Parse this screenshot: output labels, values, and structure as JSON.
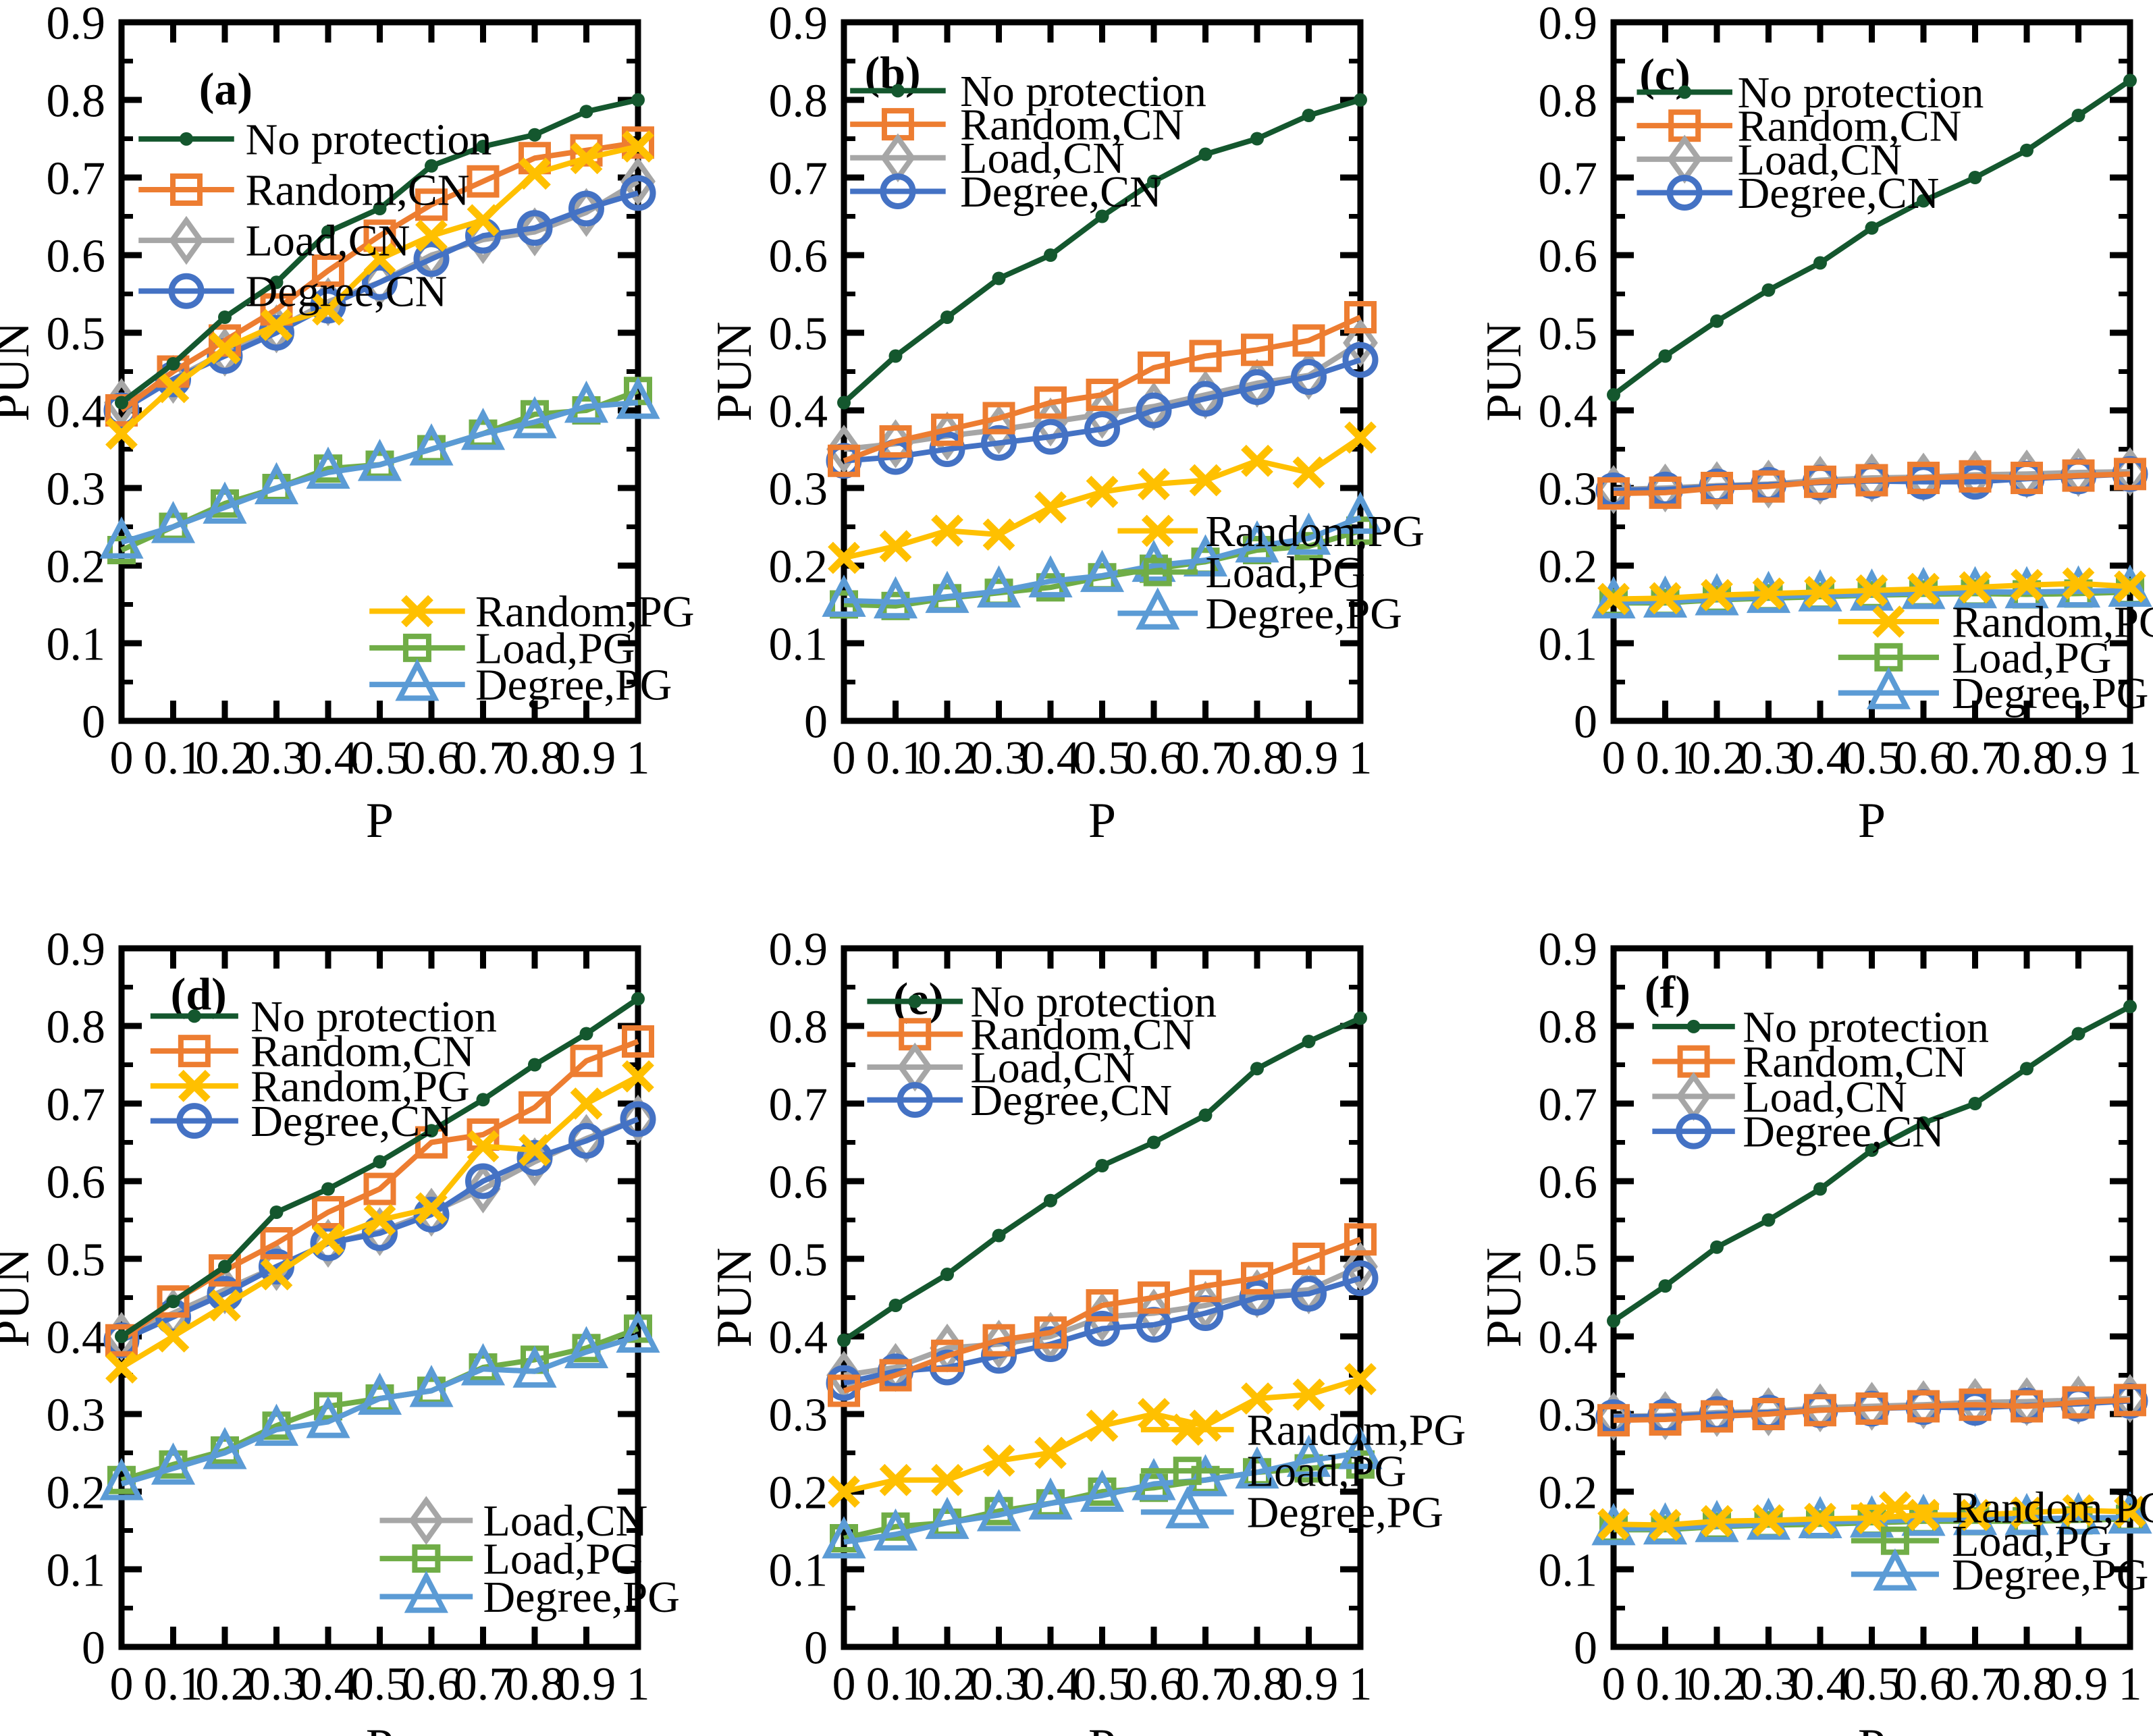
{
  "figure": {
    "xlabel": "P",
    "ylabel": "PUN",
    "x_ticklabels": [
      "0",
      "0.1",
      "0.2",
      "0.3",
      "0.4",
      "0.5",
      "0.6",
      "0.7",
      "0.8",
      "0.9",
      "1"
    ],
    "y_ticklabels": [
      "0",
      "0.1",
      "0.2",
      "0.3",
      "0.4",
      "0.5",
      "0.6",
      "0.7",
      "0.8",
      "0.9"
    ],
    "axis_color": "#000000",
    "background_color": "#ffffff"
  },
  "series_defs": {
    "No protection": {
      "color": "#14572E",
      "marker": "dot",
      "size": 10
    },
    "Random,CN": {
      "color": "#ED7D31",
      "marker": "square",
      "size": 40
    },
    "Load,CN": {
      "color": "#A6A6A6",
      "marker": "diamond",
      "size": 42
    },
    "Degree,CN": {
      "color": "#4472C4",
      "marker": "circle",
      "size": 44
    },
    "Random,PG": {
      "color": "#FFC000",
      "marker": "x",
      "size": 40
    },
    "Load,PG": {
      "color": "#70AD47",
      "marker": "square",
      "size": 34
    },
    "Degree,PG": {
      "color": "#5B9BD5",
      "marker": "triangle",
      "size": 48
    }
  },
  "chart_data": [
    {
      "id": "a",
      "letter": "(a)",
      "type": "line",
      "xlabel": "P",
      "ylabel": "PUN",
      "xlim": [
        0,
        1
      ],
      "ylim": [
        0,
        0.9
      ],
      "x": [
        0,
        0.1,
        0.2,
        0.3,
        0.4,
        0.5,
        0.6,
        0.7,
        0.8,
        0.9,
        1
      ],
      "legend_top": [
        "No protection",
        "Random,CN",
        "Load,CN",
        "Degree,CN"
      ],
      "legend_bottom": [
        "Random,PG",
        "Load,PG",
        "Degree,PG"
      ],
      "series": [
        {
          "name": "No protection",
          "values": [
            0.41,
            0.46,
            0.52,
            0.565,
            0.63,
            0.66,
            0.715,
            0.74,
            0.755,
            0.785,
            0.8
          ]
        },
        {
          "name": "Random,CN",
          "values": [
            0.4,
            0.45,
            0.49,
            0.53,
            0.58,
            0.625,
            0.665,
            0.695,
            0.725,
            0.735,
            0.745
          ]
        },
        {
          "name": "Load,CN",
          "values": [
            0.41,
            0.44,
            0.475,
            0.505,
            0.54,
            0.565,
            0.6,
            0.62,
            0.63,
            0.655,
            0.695
          ]
        },
        {
          "name": "Degree,CN",
          "values": [
            0.4,
            0.44,
            0.47,
            0.5,
            0.535,
            0.565,
            0.595,
            0.625,
            0.635,
            0.66,
            0.68
          ]
        },
        {
          "name": "Random,PG",
          "values": [
            0.37,
            0.43,
            0.48,
            0.51,
            0.53,
            0.595,
            0.625,
            0.645,
            0.705,
            0.725,
            0.74
          ]
        },
        {
          "name": "Load,PG",
          "values": [
            0.22,
            0.25,
            0.28,
            0.3,
            0.325,
            0.33,
            0.35,
            0.37,
            0.395,
            0.4,
            0.425
          ]
        },
        {
          "name": "Degree,PG",
          "values": [
            0.23,
            0.25,
            0.275,
            0.3,
            0.32,
            0.33,
            0.35,
            0.37,
            0.385,
            0.405,
            0.41
          ]
        }
      ]
    },
    {
      "id": "b",
      "letter": "(b)",
      "type": "line",
      "xlabel": "P",
      "ylabel": "PUN",
      "xlim": [
        0,
        1
      ],
      "ylim": [
        0,
        0.9
      ],
      "x": [
        0,
        0.1,
        0.2,
        0.3,
        0.4,
        0.5,
        0.6,
        0.7,
        0.8,
        0.9,
        1
      ],
      "legend_top": [
        "No protection",
        "Random,CN",
        "Load,CN",
        "Degree,CN"
      ],
      "legend_bottom": [
        "Random,PG",
        "Load,PG",
        "Degree,PG"
      ],
      "series": [
        {
          "name": "No protection",
          "values": [
            0.41,
            0.47,
            0.52,
            0.57,
            0.6,
            0.65,
            0.695,
            0.73,
            0.75,
            0.78,
            0.8
          ]
        },
        {
          "name": "Random,CN",
          "values": [
            0.335,
            0.36,
            0.375,
            0.39,
            0.41,
            0.42,
            0.455,
            0.47,
            0.478,
            0.49,
            0.52
          ]
        },
        {
          "name": "Load,CN",
          "values": [
            0.35,
            0.357,
            0.367,
            0.375,
            0.385,
            0.395,
            0.405,
            0.42,
            0.435,
            0.445,
            0.487
          ]
        },
        {
          "name": "Degree,CN",
          "values": [
            0.335,
            0.34,
            0.35,
            0.358,
            0.366,
            0.376,
            0.4,
            0.415,
            0.43,
            0.443,
            0.465
          ]
        },
        {
          "name": "Random,PG",
          "values": [
            0.21,
            0.225,
            0.245,
            0.24,
            0.275,
            0.295,
            0.305,
            0.31,
            0.335,
            0.32,
            0.365
          ]
        },
        {
          "name": "Load,PG",
          "values": [
            0.15,
            0.148,
            0.158,
            0.165,
            0.172,
            0.185,
            0.196,
            0.205,
            0.22,
            0.225,
            0.245
          ]
        },
        {
          "name": "Degree,PG",
          "values": [
            0.155,
            0.153,
            0.16,
            0.167,
            0.18,
            0.187,
            0.2,
            0.207,
            0.225,
            0.235,
            0.262
          ]
        }
      ]
    },
    {
      "id": "c",
      "letter": "(c)",
      "type": "line",
      "xlabel": "P",
      "ylabel": "PUN",
      "xlim": [
        0,
        1
      ],
      "ylim": [
        0,
        0.9
      ],
      "x": [
        0,
        0.1,
        0.2,
        0.3,
        0.4,
        0.5,
        0.6,
        0.7,
        0.8,
        0.9,
        1
      ],
      "legend_top": [
        "No protection",
        "Random,CN",
        "Load,CN",
        "Degree,CN"
      ],
      "legend_bottom": [
        "Random,PG",
        "Load,PG",
        "Degree,PG"
      ],
      "series": [
        {
          "name": "No protection",
          "values": [
            0.42,
            0.47,
            0.515,
            0.555,
            0.59,
            0.635,
            0.67,
            0.7,
            0.735,
            0.78,
            0.825
          ]
        },
        {
          "name": "Random,CN",
          "values": [
            0.293,
            0.294,
            0.3,
            0.302,
            0.308,
            0.31,
            0.313,
            0.315,
            0.313,
            0.316,
            0.318
          ]
        },
        {
          "name": "Load,CN",
          "values": [
            0.298,
            0.3,
            0.303,
            0.305,
            0.31,
            0.313,
            0.314,
            0.317,
            0.318,
            0.32,
            0.321
          ]
        },
        {
          "name": "Degree,CN",
          "values": [
            0.297,
            0.298,
            0.302,
            0.304,
            0.307,
            0.309,
            0.308,
            0.308,
            0.312,
            0.315,
            0.318
          ]
        },
        {
          "name": "Random,PG",
          "values": [
            0.157,
            0.158,
            0.162,
            0.164,
            0.166,
            0.168,
            0.17,
            0.172,
            0.175,
            0.177,
            0.173
          ]
        },
        {
          "name": "Load,PG",
          "values": [
            0.152,
            0.152,
            0.156,
            0.158,
            0.16,
            0.162,
            0.163,
            0.164,
            0.163,
            0.164,
            0.166
          ]
        },
        {
          "name": "Degree,PG",
          "values": [
            0.153,
            0.154,
            0.157,
            0.16,
            0.162,
            0.163,
            0.165,
            0.166,
            0.166,
            0.167,
            0.168
          ]
        }
      ]
    },
    {
      "id": "d",
      "letter": "(d)",
      "type": "line",
      "xlabel": "P",
      "ylabel": "PUN",
      "xlim": [
        0,
        1
      ],
      "ylim": [
        0,
        0.9
      ],
      "x": [
        0,
        0.1,
        0.2,
        0.3,
        0.4,
        0.5,
        0.6,
        0.7,
        0.8,
        0.9,
        1
      ],
      "legend_top": [
        "No protection",
        "Random,CN",
        "Random,PG",
        "Degree,CN"
      ],
      "legend_bottom": [
        "Load,CN",
        "Load,PG",
        "Degree,PG"
      ],
      "series": [
        {
          "name": "No protection",
          "values": [
            0.4,
            0.445,
            0.49,
            0.56,
            0.59,
            0.625,
            0.665,
            0.705,
            0.75,
            0.79,
            0.835
          ]
        },
        {
          "name": "Random,CN",
          "values": [
            0.395,
            0.445,
            0.485,
            0.52,
            0.56,
            0.59,
            0.65,
            0.66,
            0.695,
            0.755,
            0.78
          ]
        },
        {
          "name": "Random,PG",
          "values": [
            0.36,
            0.4,
            0.44,
            0.48,
            0.525,
            0.55,
            0.565,
            0.645,
            0.64,
            0.7,
            0.735
          ]
        },
        {
          "name": "Degree,CN",
          "values": [
            0.395,
            0.425,
            0.455,
            0.49,
            0.52,
            0.533,
            0.557,
            0.6,
            0.63,
            0.652,
            0.68
          ]
        },
        {
          "name": "Load,CN",
          "values": [
            0.4,
            0.43,
            0.46,
            0.49,
            0.52,
            0.535,
            0.56,
            0.59,
            0.625,
            0.655,
            0.68
          ]
        },
        {
          "name": "Load,PG",
          "values": [
            0.215,
            0.235,
            0.253,
            0.285,
            0.31,
            0.32,
            0.33,
            0.36,
            0.37,
            0.385,
            0.41
          ]
        },
        {
          "name": "Degree,PG",
          "values": [
            0.21,
            0.23,
            0.25,
            0.28,
            0.29,
            0.32,
            0.33,
            0.358,
            0.355,
            0.38,
            0.4
          ]
        }
      ]
    },
    {
      "id": "e",
      "letter": "(e)",
      "type": "line",
      "xlabel": "P",
      "ylabel": "PUN",
      "xlim": [
        0,
        1
      ],
      "ylim": [
        0,
        0.9
      ],
      "x": [
        0,
        0.1,
        0.2,
        0.3,
        0.4,
        0.5,
        0.6,
        0.7,
        0.8,
        0.9,
        1
      ],
      "legend_top": [
        "No protection",
        "Random,CN",
        "Load,CN",
        "Degree,CN"
      ],
      "legend_bottom": [
        "Random,PG",
        "Load,PG",
        "Degree,PG"
      ],
      "series": [
        {
          "name": "No protection",
          "values": [
            0.395,
            0.44,
            0.48,
            0.53,
            0.575,
            0.62,
            0.65,
            0.685,
            0.745,
            0.78,
            0.81
          ]
        },
        {
          "name": "Random,CN",
          "values": [
            0.33,
            0.35,
            0.375,
            0.395,
            0.405,
            0.44,
            0.45,
            0.465,
            0.475,
            0.5,
            0.525
          ]
        },
        {
          "name": "Load,CN",
          "values": [
            0.35,
            0.36,
            0.385,
            0.39,
            0.4,
            0.425,
            0.43,
            0.44,
            0.455,
            0.46,
            0.49
          ]
        },
        {
          "name": "Degree,CN",
          "values": [
            0.34,
            0.355,
            0.36,
            0.375,
            0.39,
            0.41,
            0.415,
            0.43,
            0.45,
            0.455,
            0.475
          ]
        },
        {
          "name": "Random,PG",
          "values": [
            0.2,
            0.215,
            0.215,
            0.24,
            0.25,
            0.285,
            0.3,
            0.285,
            0.32,
            0.325,
            0.345
          ]
        },
        {
          "name": "Load,PG",
          "values": [
            0.14,
            0.155,
            0.16,
            0.175,
            0.185,
            0.2,
            0.205,
            0.215,
            0.225,
            0.23,
            0.235
          ]
        },
        {
          "name": "Degree,PG",
          "values": [
            0.135,
            0.145,
            0.16,
            0.17,
            0.185,
            0.195,
            0.21,
            0.215,
            0.225,
            0.24,
            0.25
          ]
        }
      ]
    },
    {
      "id": "f",
      "letter": "(f)",
      "type": "line",
      "xlabel": "P",
      "ylabel": "PUN",
      "xlim": [
        0,
        1
      ],
      "ylim": [
        0,
        0.9
      ],
      "x": [
        0,
        0.1,
        0.2,
        0.3,
        0.4,
        0.5,
        0.6,
        0.7,
        0.8,
        0.9,
        1
      ],
      "legend_top": [
        "No protection",
        "Random,CN",
        "Load,CN",
        "Degree,CN"
      ],
      "legend_bottom": [
        "Random,PG",
        "Load,PG",
        "Degree,PG"
      ],
      "series": [
        {
          "name": "No protection",
          "values": [
            0.42,
            0.465,
            0.515,
            0.55,
            0.59,
            0.64,
            0.675,
            0.7,
            0.745,
            0.79,
            0.825
          ]
        },
        {
          "name": "Random,CN",
          "values": [
            0.292,
            0.293,
            0.297,
            0.3,
            0.305,
            0.307,
            0.31,
            0.312,
            0.31,
            0.315,
            0.318
          ]
        },
        {
          "name": "Load,CN",
          "values": [
            0.297,
            0.298,
            0.302,
            0.303,
            0.308,
            0.31,
            0.312,
            0.315,
            0.316,
            0.318,
            0.32
          ]
        },
        {
          "name": "Degree,CN",
          "values": [
            0.296,
            0.297,
            0.3,
            0.302,
            0.305,
            0.307,
            0.309,
            0.308,
            0.311,
            0.313,
            0.317
          ]
        },
        {
          "name": "Random,PG",
          "values": [
            0.158,
            0.157,
            0.162,
            0.163,
            0.165,
            0.166,
            0.17,
            0.17,
            0.173,
            0.176,
            0.174
          ]
        },
        {
          "name": "Load,PG",
          "values": [
            0.151,
            0.151,
            0.155,
            0.157,
            0.158,
            0.16,
            0.162,
            0.162,
            0.162,
            0.163,
            0.165
          ]
        },
        {
          "name": "Degree,PG",
          "values": [
            0.152,
            0.153,
            0.156,
            0.159,
            0.161,
            0.162,
            0.164,
            0.165,
            0.165,
            0.166,
            0.167
          ]
        }
      ]
    }
  ]
}
